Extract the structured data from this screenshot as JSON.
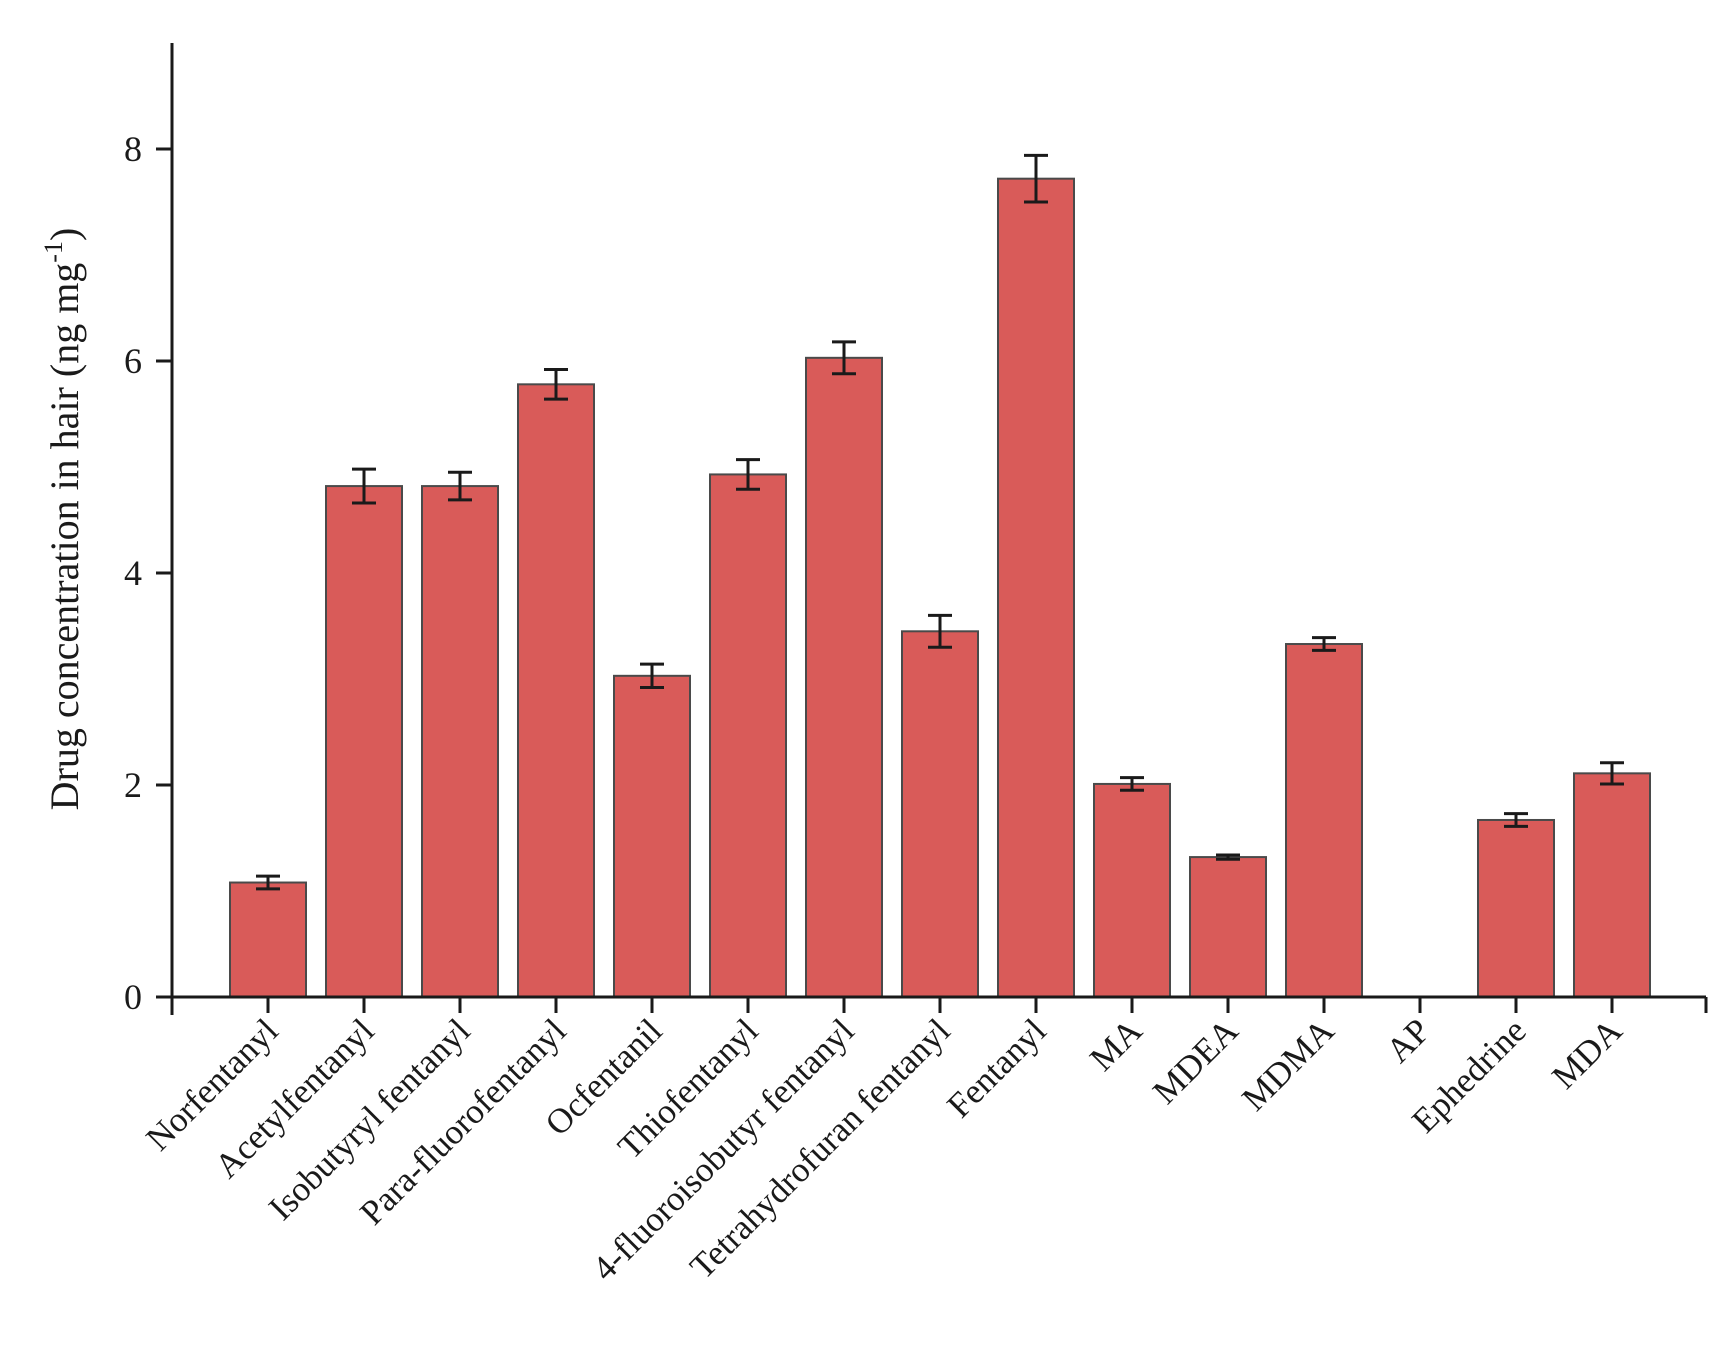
{
  "chart_data": {
    "type": "bar",
    "title": "",
    "xlabel": "",
    "ylabel": "Drug concentration in hair (ng mg",
    "ylabel_superscript": "-1",
    "ylabel_suffix": ")",
    "ylim": [
      0,
      9
    ],
    "yticks": [
      0,
      2,
      4,
      6,
      8
    ],
    "grid": false,
    "legend": "none",
    "bar_color": "#D95B59",
    "categories": [
      "Norfentanyl",
      "Acetylfentanyl",
      "Isobutyryl fentanyl",
      "Para-fluorofentanyl",
      "Ocfentanil",
      "Thiofentanyl",
      "4-fluoroisobutyr fentanyl",
      "Tetrahydrofuran fentanyl",
      "Fentanyl",
      "MA",
      "MDEA",
      "MDMA",
      "AP",
      "Ephedrine",
      "MDA"
    ],
    "series": [
      {
        "values": [
          1.08,
          4.82,
          4.82,
          5.78,
          3.03,
          4.93,
          6.03,
          3.45,
          7.72,
          2.01,
          1.32,
          3.33,
          0,
          1.67,
          2.11
        ],
        "errors": [
          0.06,
          0.16,
          0.13,
          0.14,
          0.11,
          0.14,
          0.15,
          0.15,
          0.22,
          0.06,
          0.02,
          0.06,
          0,
          0.06,
          0.1
        ]
      }
    ]
  }
}
